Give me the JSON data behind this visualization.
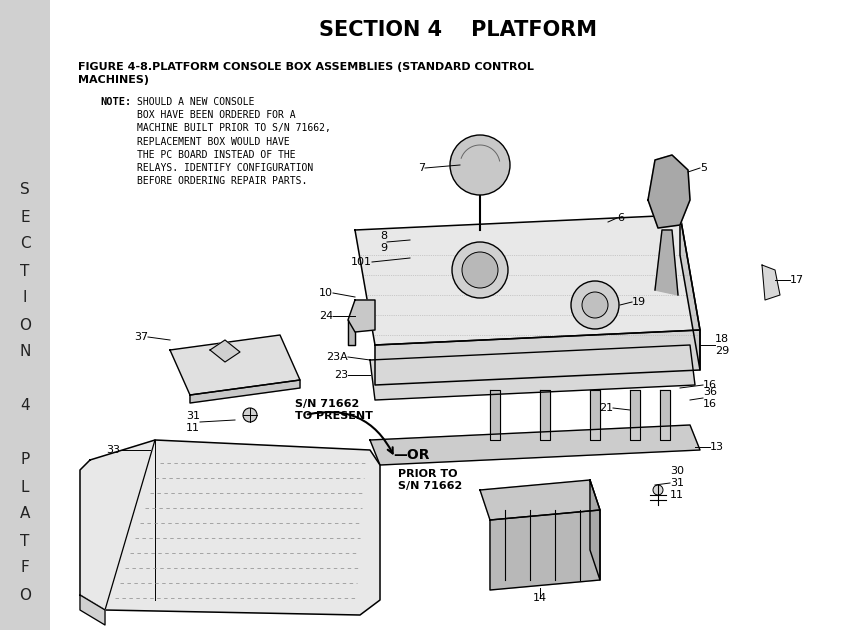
{
  "title": "SECTION 4    PLATFORM",
  "figure_title_line1": "FIGURE 4-8.PLATFORM CONSOLE BOX ASSEMBLIES (STANDARD CONTROL",
  "figure_title_line2": "MACHINES)",
  "note_label": "NOTE:",
  "note_body": "SHOULD A NEW CONSOLE\nBOX HAVE BEEN ORDERED FOR A\nMACHINE BUILT PRIOR TO S/N 71662,\nREPLACEMENT BOX WOULD HAVE\nTHE PC BOARD INSTEAD OF THE\nRELAYS. IDENTIFY CONFIGURATION\nBEFORE ORDERING REPAIR PARTS.",
  "bg_color": "#ffffff",
  "sidebar_bg": "#d0d0d0",
  "sidebar_letters": [
    "S",
    "E",
    "C",
    "T",
    "I",
    "O",
    "N",
    "",
    "4",
    "",
    "P",
    "L",
    "A",
    "T",
    "F",
    "O"
  ],
  "title_fontsize": 15,
  "fig_title_fontsize": 8,
  "note_fontsize": 7,
  "label_fontsize": 8
}
